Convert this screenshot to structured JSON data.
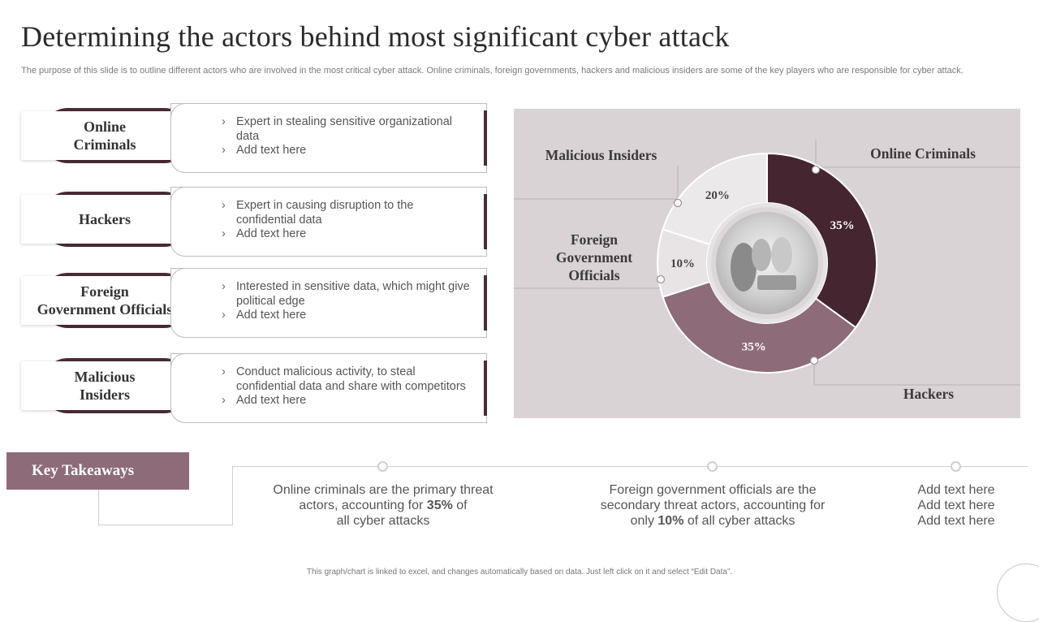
{
  "title": "Determining the actors behind most significant cyber attack",
  "subtitle": "The purpose of this slide is to outline different actors who are involved in the most critical cyber attack. Online criminals, foreign governments, hackers and malicious insiders are some of the key players who are responsible for cyber attack.",
  "actors": [
    {
      "name_line1": "Online",
      "name_line2": "Criminals",
      "bullets": [
        "Expert in stealing sensitive organizational data",
        "Add text here"
      ]
    },
    {
      "name_line1": "Hackers",
      "name_line2": "",
      "bullets": [
        "Expert in causing disruption to the confidential data",
        "Add text here"
      ]
    },
    {
      "name_line1": "Foreign",
      "name_line2": "Government Officials",
      "bullets": [
        "Interested in sensitive data, which might give political edge",
        "Add text here"
      ]
    },
    {
      "name_line1": "Malicious",
      "name_line2": "Insiders",
      "bullets": [
        "Conduct malicious activity, to steal confidential data and share with competitors",
        "Add text here"
      ]
    }
  ],
  "chart_data": {
    "type": "pie",
    "variant": "donut",
    "categories": [
      "Online Criminals",
      "Hackers",
      "Foreign Government Officials",
      "Malicious Insiders"
    ],
    "values": [
      35,
      35,
      10,
      20
    ],
    "data_labels": [
      "35%",
      "35%",
      "10%",
      "20%"
    ],
    "colors": [
      "#442530",
      "#8e6b79",
      "#e8e4e6",
      "#ece9ea"
    ],
    "category_label_lines": [
      [
        "Online Criminals"
      ],
      [
        "Hackers"
      ],
      [
        "Foreign",
        "Government",
        "Officials"
      ],
      [
        "Malicious Insiders"
      ]
    ],
    "center": "photo of people at a meeting"
  },
  "key_takeaways": {
    "label": "Key Takeaways",
    "items": [
      {
        "line1": "Online criminals are the primary threat",
        "line2_pre": "actors, accounting for ",
        "line2_bold": "35%",
        "line2_post": " of",
        "line3": "all cyber attacks"
      },
      {
        "line1": "Foreign government  officials are the",
        "line2": "secondary threat actors, accounting for",
        "line3_pre": "only ",
        "line3_bold": "10%",
        "line3_post": " of all cyber attacks"
      },
      {
        "lines": [
          "Add text here",
          "Add text here",
          "Add text here"
        ]
      }
    ]
  },
  "footer": "This graph/chart is linked to excel, and changes automatically based on data. Just left click on it and select “Edit Data”.",
  "colors": {
    "accent_dark": "#442530",
    "accent_mauve": "#8e6b79",
    "panel_bg": "#d9d3d5"
  }
}
